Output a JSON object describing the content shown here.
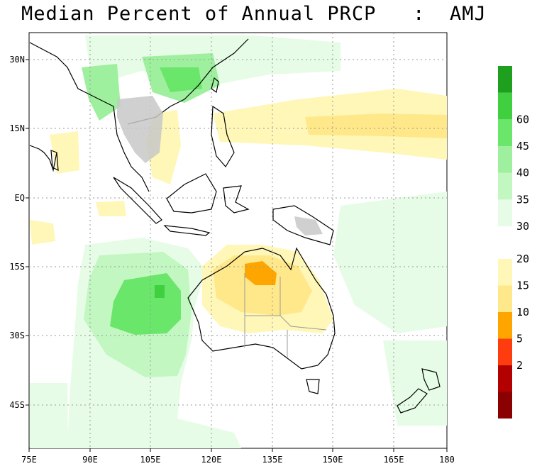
{
  "title": "Median Percent of Annual PRCP   :  AMJ",
  "map": {
    "lon_labels": [
      "75E",
      "90E",
      "105E",
      "120E",
      "135E",
      "150E",
      "165E",
      "180"
    ],
    "lat_labels": [
      "30N",
      "15N",
      "EQ",
      "15S",
      "30S",
      "45S"
    ],
    "grid": true,
    "colors": {
      "coast": "#000000",
      "borders": "#9a9a9a",
      "grid": "#9a9a9a",
      "land_gray": "#c8c8c8"
    }
  },
  "colorbar": {
    "upper": [
      {
        "label": "30",
        "color": "#e6fce6"
      },
      {
        "label": "35",
        "color": "#c2f7c2"
      },
      {
        "label": "40",
        "color": "#9ef09e"
      },
      {
        "label": "45",
        "color": "#6ae66a"
      },
      {
        "label": "60",
        "color": "#3fcf3f"
      },
      {
        "label": "",
        "color": "#1ea01e"
      }
    ],
    "lower": [
      {
        "label": "20",
        "color": "#fff7b8"
      },
      {
        "label": "15",
        "color": "#ffe88a"
      },
      {
        "label": "10",
        "color": "#ffa500"
      },
      {
        "label": "5",
        "color": "#ff3b10"
      },
      {
        "label": "2",
        "color": "#b30000"
      },
      {
        "label": "",
        "color": "#8b0000"
      }
    ]
  }
}
